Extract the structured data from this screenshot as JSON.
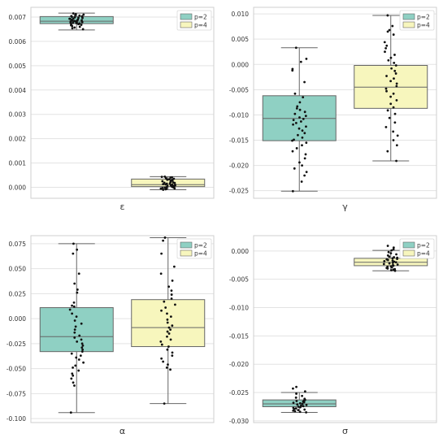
{
  "chart_data": [
    {
      "type": "box",
      "xlabel": "ε",
      "ylim": [
        -0.00045,
        0.0074
      ],
      "ticks": [
        0.0,
        0.001,
        0.002,
        0.003,
        0.004,
        0.005,
        0.006,
        0.007
      ],
      "tick_decimals": 3,
      "legend": {
        "position": "top-right",
        "entries": [
          "p=2",
          "p=4"
        ]
      },
      "grid": true,
      "series": [
        {
          "name": "p=2",
          "whisker_low": 0.00647,
          "q1": 0.00673,
          "median": 0.00683,
          "q3": 0.00702,
          "whisker_high": 0.00716,
          "points": [
            0.00715,
            0.00712,
            0.0071,
            0.00708,
            0.00706,
            0.00704,
            0.00703,
            0.00701,
            0.007,
            0.00699,
            0.00697,
            0.00696,
            0.00694,
            0.00693,
            0.00692,
            0.0069,
            0.00688,
            0.00687,
            0.00686,
            0.00685,
            0.00684,
            0.00683,
            0.00682,
            0.00681,
            0.0068,
            0.00679,
            0.00678,
            0.00677,
            0.00676,
            0.00675,
            0.00674,
            0.00673,
            0.00672,
            0.00671,
            0.0067,
            0.00668,
            0.00666,
            0.00663,
            0.0066,
            0.00657,
            0.00654,
            0.0065
          ]
        },
        {
          "name": "p=4",
          "whisker_low": -0.0001,
          "q1": 3e-05,
          "median": 0.00011,
          "q3": 0.00034,
          "whisker_high": 0.00044,
          "points": [
            0.00044,
            0.00043,
            0.00041,
            0.0004,
            0.00038,
            0.00036,
            0.00035,
            0.00033,
            0.00031,
            0.0003,
            0.00028,
            0.00027,
            0.00025,
            0.00023,
            0.00022,
            0.0002,
            0.00019,
            0.00018,
            0.00016,
            0.00015,
            0.00013,
            0.00012,
            0.00011,
            0.0001,
            9e-05,
            8e-05,
            7e-05,
            6e-05,
            5e-05,
            4e-05,
            3e-05,
            2e-05,
            1e-05,
            0.0,
            -1e-05,
            -2e-05,
            -3e-05,
            -4e-05,
            -5e-05,
            -6e-05,
            -8e-05,
            -0.0001
          ]
        }
      ]
    },
    {
      "type": "box",
      "xlabel": "γ",
      "ylim": [
        -0.0265,
        0.0113
      ],
      "ticks": [
        -0.025,
        -0.02,
        -0.015,
        -0.01,
        -0.005,
        0.0,
        0.005,
        0.01
      ],
      "tick_decimals": 3,
      "legend": {
        "position": "top-right",
        "entries": [
          "p=2",
          "p=4"
        ]
      },
      "grid": true,
      "series": [
        {
          "name": "p=2",
          "whisker_low": -0.0251,
          "q1": -0.0151,
          "median": -0.0107,
          "q3": -0.0062,
          "whisker_high": 0.0033,
          "points": [
            0.0033,
            0.0011,
            0.0005,
            -0.0009,
            -0.0012,
            -0.0035,
            -0.0058,
            -0.0065,
            -0.0075,
            -0.0083,
            -0.0087,
            -0.009,
            -0.0094,
            -0.0098,
            -0.0102,
            -0.0105,
            -0.0108,
            -0.011,
            -0.0113,
            -0.0116,
            -0.0119,
            -0.0123,
            -0.0127,
            -0.0131,
            -0.0136,
            -0.014,
            -0.0145,
            -0.0149,
            -0.0151,
            -0.0155,
            -0.016,
            -0.0166,
            -0.0172,
            -0.0178,
            -0.0186,
            -0.0194,
            -0.02,
            -0.0206,
            -0.0213,
            -0.022,
            -0.0232,
            -0.0251
          ]
        },
        {
          "name": "p=4",
          "whisker_low": -0.0191,
          "q1": -0.0087,
          "median": -0.0045,
          "q3": -0.0002,
          "whisker_high": 0.0097,
          "points": [
            0.0097,
            0.0076,
            0.0068,
            0.0065,
            0.0059,
            0.0044,
            0.0037,
            0.0032,
            0.0025,
            0.0019,
            0.0013,
            0.0008,
            0.0003,
            -0.0002,
            -0.0008,
            -0.0013,
            -0.0018,
            -0.0023,
            -0.0028,
            -0.0033,
            -0.0038,
            -0.0043,
            -0.0048,
            -0.0053,
            -0.0058,
            -0.0064,
            -0.0071,
            -0.0078,
            -0.0085,
            -0.0091,
            -0.0098,
            -0.0106,
            -0.0115,
            -0.0124,
            -0.0133,
            -0.0141,
            -0.015,
            -0.016,
            -0.0172,
            -0.0191
          ]
        }
      ]
    },
    {
      "type": "box",
      "xlabel": "α",
      "ylim": [
        -0.104,
        0.083
      ],
      "ticks": [
        -0.1,
        -0.075,
        -0.05,
        -0.025,
        0.0,
        0.025,
        0.05,
        0.075
      ],
      "tick_decimals": 3,
      "legend": {
        "position": "top-right",
        "entries": [
          "p=2",
          "p=4"
        ]
      },
      "grid": true,
      "series": [
        {
          "name": "p=2",
          "whisker_low": -0.094,
          "q1": -0.033,
          "median": -0.018,
          "q3": 0.011,
          "whisker_high": 0.075,
          "points": [
            0.075,
            0.069,
            0.065,
            0.045,
            0.035,
            0.029,
            0.026,
            0.016,
            0.013,
            0.012,
            0.009,
            0.005,
            0.002,
            -0.002,
            -0.005,
            -0.008,
            -0.011,
            -0.014,
            -0.017,
            -0.019,
            -0.021,
            -0.023,
            -0.025,
            -0.027,
            -0.029,
            -0.031,
            -0.033,
            -0.035,
            -0.037,
            -0.039,
            -0.041,
            -0.044,
            -0.047,
            -0.049,
            -0.052,
            -0.055,
            -0.057,
            -0.06,
            -0.064,
            -0.067,
            -0.094
          ]
        },
        {
          "name": "p=4",
          "whisker_low": -0.085,
          "q1": -0.028,
          "median": -0.009,
          "q3": 0.019,
          "whisker_high": 0.081,
          "points": [
            0.081,
            0.078,
            0.065,
            0.052,
            0.045,
            0.038,
            0.032,
            0.028,
            0.024,
            0.02,
            0.017,
            0.014,
            0.011,
            0.008,
            0.005,
            0.002,
            -0.001,
            -0.004,
            -0.007,
            -0.009,
            -0.011,
            -0.013,
            -0.015,
            -0.018,
            -0.021,
            -0.023,
            -0.026,
            -0.028,
            -0.031,
            -0.034,
            -0.037,
            -0.04,
            -0.043,
            -0.046,
            -0.049,
            -0.051,
            -0.085
          ]
        }
      ]
    },
    {
      "type": "box",
      "xlabel": "σ",
      "ylim": [
        -0.0303,
        0.0027
      ],
      "ticks": [
        -0.03,
        -0.025,
        -0.02,
        -0.015,
        -0.01,
        -0.005,
        0.0
      ],
      "tick_decimals": 3,
      "legend": {
        "position": "top-right",
        "entries": [
          "p=2",
          "p=4"
        ]
      },
      "grid": true,
      "series": [
        {
          "name": "p=2",
          "whisker_low": -0.0285,
          "q1": -0.0275,
          "median": -0.027,
          "q3": -0.0263,
          "whisker_high": -0.025,
          "points": [
            -0.024,
            -0.0243,
            -0.0248,
            -0.0252,
            -0.0256,
            -0.0259,
            -0.0261,
            -0.0263,
            -0.0264,
            -0.0265,
            -0.0266,
            -0.0267,
            -0.0268,
            -0.0269,
            -0.027,
            -0.0271,
            -0.0272,
            -0.0273,
            -0.0274,
            -0.0275,
            -0.0276,
            -0.0277,
            -0.0278,
            -0.0279,
            -0.028,
            -0.0281,
            -0.0282,
            -0.0283,
            -0.0284,
            -0.0285
          ]
        },
        {
          "name": "p=4",
          "whisker_low": -0.0035,
          "q1": -0.0026,
          "median": -0.002,
          "q3": -0.0013,
          "whisker_high": 0.0001,
          "points": [
            0.0009,
            0.0006,
            0.0003,
            0.0001,
            -0.0002,
            -0.0004,
            -0.0006,
            -0.0008,
            -0.001,
            -0.0011,
            -0.0012,
            -0.0013,
            -0.0014,
            -0.0015,
            -0.0016,
            -0.0017,
            -0.0018,
            -0.0019,
            -0.002,
            -0.0021,
            -0.0022,
            -0.0023,
            -0.0024,
            -0.0025,
            -0.0026,
            -0.0027,
            -0.0028,
            -0.0029,
            -0.003,
            -0.0031,
            -0.0032,
            -0.0033,
            -0.0034,
            -0.0035
          ]
        }
      ]
    }
  ],
  "colors": {
    "p2_fill": "#8fd0c3",
    "p4_fill": "#f7f6bd",
    "box_edge": "#666666",
    "grid": "#e3e3e3",
    "axes_edge": "#cfcfcf",
    "point": "#111111",
    "text": "#333333"
  }
}
